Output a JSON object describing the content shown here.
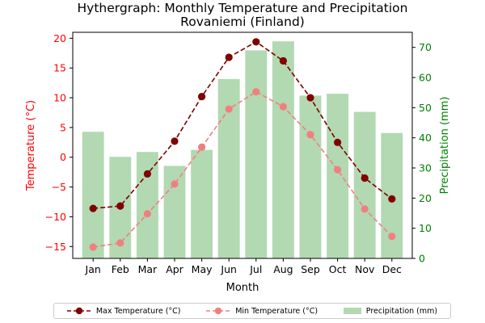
{
  "chart_data": {
    "type": "bar+line",
    "title": "Hythergraph: Monthly Temperature and Precipitation",
    "subtitle": "Rovaniemi (Finland)",
    "xlabel": "Month",
    "ylabel_left": "Temperature (°C)",
    "ylabel_right": "Precipitation (mm)",
    "categories": [
      "Jan",
      "Feb",
      "Mar",
      "Apr",
      "May",
      "Jun",
      "Jul",
      "Aug",
      "Sep",
      "Oct",
      "Nov",
      "Dec"
    ],
    "ylim_left": [
      -17,
      21
    ],
    "yticks_left": [
      -15,
      -10,
      -5,
      0,
      5,
      10,
      15,
      20
    ],
    "ylim_right": [
      0,
      75
    ],
    "yticks_right": [
      0,
      10,
      20,
      30,
      40,
      50,
      60,
      70
    ],
    "grid": false,
    "legend_position": "bottom",
    "series": [
      {
        "name": "Max Temperature (°C)",
        "kind": "line",
        "axis": "left",
        "style": "dashed",
        "color": "#800000",
        "values": [
          -8.6,
          -8.2,
          -2.8,
          2.7,
          10.2,
          16.8,
          19.4,
          16.2,
          10.0,
          2.5,
          -3.5,
          -7.0
        ]
      },
      {
        "name": "Min Temperature (°C)",
        "kind": "line",
        "axis": "left",
        "style": "dashed",
        "color": "#f08080",
        "values": [
          -15.1,
          -14.4,
          -9.5,
          -4.5,
          1.7,
          8.1,
          11.0,
          8.5,
          3.8,
          -2.1,
          -8.7,
          -13.3
        ]
      },
      {
        "name": "Precipitation (mm)",
        "kind": "bar",
        "axis": "right",
        "color": "#b2d9b2",
        "values": [
          42.0,
          33.7,
          35.3,
          30.7,
          36.0,
          59.5,
          69.0,
          72.0,
          54.0,
          54.6,
          48.6,
          41.6
        ]
      }
    ],
    "colors": {
      "left_axis": "#ff0000",
      "right_axis": "#008000"
    }
  }
}
